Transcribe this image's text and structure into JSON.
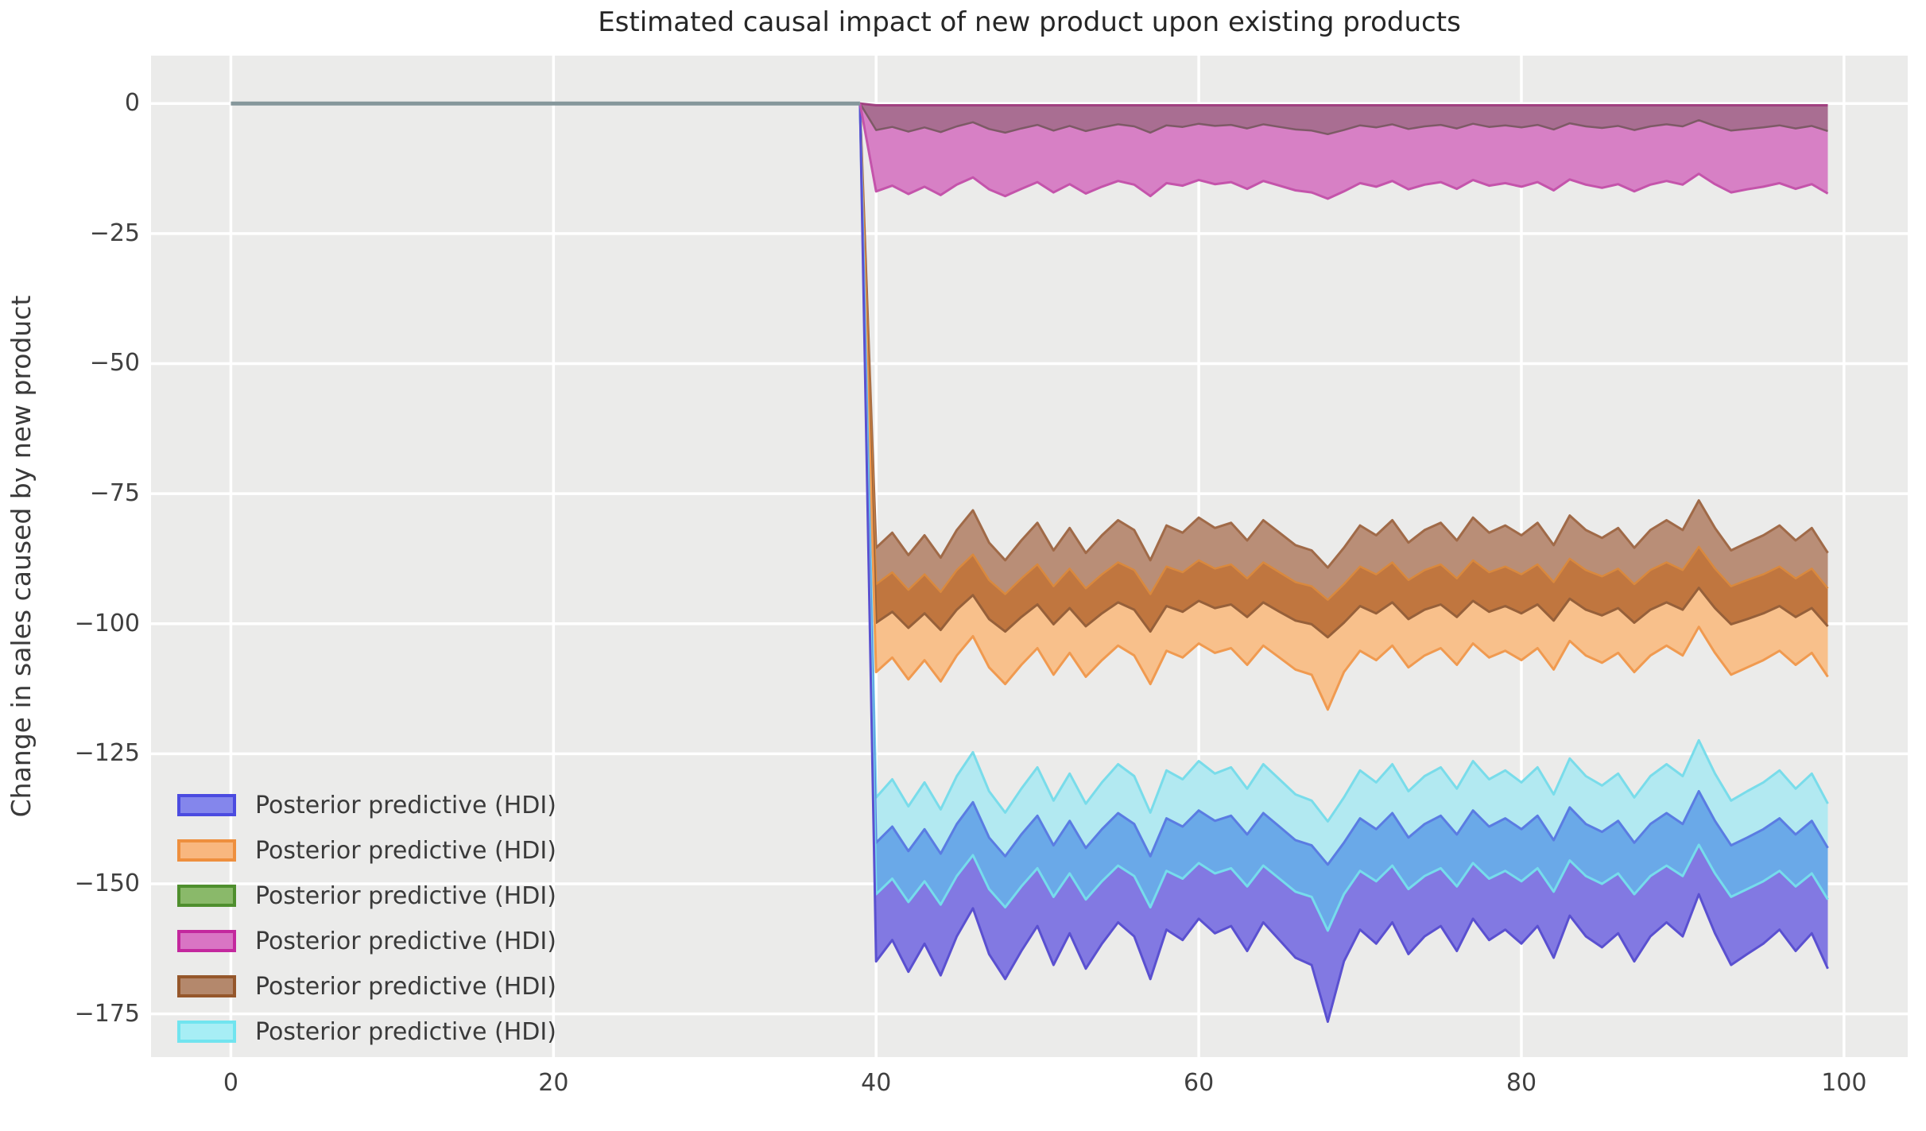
{
  "chart_data": {
    "type": "area",
    "title": "Estimated causal impact of new product upon existing products",
    "xlabel": "",
    "ylabel": "Change in sales caused by new product",
    "xlim": [
      -4.95,
      103.95
    ],
    "ylim": [
      -183.3,
      9.2
    ],
    "x_ticks": [
      0,
      20,
      40,
      60,
      80,
      100
    ],
    "y_ticks": [
      0,
      -25,
      -50,
      -75,
      -100,
      -125,
      -150,
      -175
    ],
    "grid": true,
    "grid_color": "#ffffff",
    "background": "#ebebea",
    "intervention_x": 40,
    "pre_period": {
      "x_start": 0,
      "value": 0,
      "color": "#85979b",
      "width": 5
    },
    "anchor": {
      "x": 39,
      "y": 0
    },
    "x_start": 40,
    "x_count": 60,
    "legend_title": "Posterior predictive (HDI)",
    "legend": [
      {
        "label": "Posterior predictive (HDI)",
        "face": "#8486ec",
        "edge": "#4b4be0"
      },
      {
        "label": "Posterior predictive (HDI)",
        "face": "#f8b77f",
        "edge": "#ee8f3e"
      },
      {
        "label": "Posterior predictive (HDI)",
        "face": "#8ab96a",
        "edge": "#4f8f2e"
      },
      {
        "label": "Posterior predictive (HDI)",
        "face": "#d975c4",
        "edge": "#c3289e"
      },
      {
        "label": "Posterior predictive (HDI)",
        "face": "#b4886c",
        "edge": "#95572b"
      },
      {
        "label": "Posterior predictive (HDI)",
        "face": "#a7eef5",
        "edge": "#71e4ef"
      }
    ],
    "bands": [
      {
        "name": "purple",
        "upper": "purple_upper",
        "lower": "purple_lower"
      },
      {
        "name": "orange",
        "upper": "orange_upper",
        "lower": "orange_lower"
      },
      {
        "name": "green",
        "upper": "green_upper",
        "lower": "green_lower"
      },
      {
        "name": "pink",
        "upper": "pink_upper",
        "lower": "pink_lower"
      },
      {
        "name": "brown",
        "upper": "brown_upper",
        "lower": "brown_lower"
      },
      {
        "name": "cyan",
        "upper": "cyan_upper",
        "lower": "cyan_lower"
      }
    ],
    "series": {
      "green_upper": -0.1,
      "pink_upper": -0.35,
      "green_lower": [
        -5.1,
        -4.5,
        -5.4,
        -4.6,
        -5.5,
        -4.4,
        -3.6,
        -4.9,
        -5.6,
        -4.8,
        -4.1,
        -5.2,
        -4.3,
        -5.3,
        -4.6,
        -4.0,
        -4.4,
        -5.6,
        -4.2,
        -4.5,
        -3.9,
        -4.3,
        -4.1,
        -4.8,
        -4.0,
        -4.5,
        -5.0,
        -5.2,
        -5.9,
        -5.1,
        -4.2,
        -4.6,
        -4.0,
        -4.9,
        -4.4,
        -4.1,
        -4.8,
        -3.9,
        -4.5,
        -4.2,
        -4.6,
        -4.1,
        -5.0,
        -3.8,
        -4.4,
        -4.7,
        -4.3,
        -5.1,
        -4.4,
        -4.0,
        -4.4,
        -3.2,
        -4.3,
        -5.2,
        -4.9,
        -4.6,
        -4.2,
        -4.8,
        -4.3,
        -5.3
      ],
      "pink_lower": [
        -16.9,
        -15.8,
        -17.4,
        -16.0,
        -17.6,
        -15.6,
        -14.2,
        -16.5,
        -17.8,
        -16.4,
        -15.1,
        -17.1,
        -15.5,
        -17.3,
        -16.0,
        -14.9,
        -15.6,
        -17.8,
        -15.3,
        -15.8,
        -14.7,
        -15.5,
        -15.1,
        -16.4,
        -14.9,
        -15.8,
        -16.7,
        -17.1,
        -18.3,
        -16.9,
        -15.3,
        -16.0,
        -14.9,
        -16.5,
        -15.6,
        -15.1,
        -16.4,
        -14.7,
        -15.8,
        -15.3,
        -16.0,
        -15.1,
        -16.7,
        -14.6,
        -15.6,
        -16.2,
        -15.5,
        -16.9,
        -15.6,
        -14.9,
        -15.6,
        -13.5,
        -15.5,
        -17.1,
        -16.5,
        -16.0,
        -15.3,
        -16.4,
        -15.5,
        -17.3
      ],
      "brown_upper": [
        -85.4,
        -82.5,
        -86.8,
        -83.0,
        -87.3,
        -82.0,
        -78.2,
        -84.4,
        -87.8,
        -84.0,
        -80.6,
        -85.9,
        -81.6,
        -86.4,
        -83.0,
        -80.1,
        -82.0,
        -87.8,
        -81.1,
        -82.5,
        -79.6,
        -81.6,
        -80.6,
        -84.0,
        -80.1,
        -82.5,
        -84.9,
        -85.9,
        -89.2,
        -85.4,
        -81.1,
        -83.0,
        -80.1,
        -84.4,
        -82.0,
        -80.6,
        -84.0,
        -79.6,
        -82.5,
        -81.1,
        -83.0,
        -80.6,
        -84.9,
        -79.2,
        -82.0,
        -83.5,
        -81.6,
        -85.4,
        -82.0,
        -80.1,
        -82.0,
        -76.3,
        -81.6,
        -85.9,
        -84.4,
        -83.0,
        -81.1,
        -84.0,
        -81.6,
        -86.4
      ],
      "orange_upper": [
        -92.4,
        -90.1,
        -93.5,
        -90.5,
        -93.9,
        -89.7,
        -86.7,
        -91.6,
        -94.3,
        -91.3,
        -88.6,
        -92.8,
        -89.4,
        -93.2,
        -90.5,
        -88.2,
        -89.7,
        -94.3,
        -89.0,
        -90.1,
        -87.8,
        -89.4,
        -88.6,
        -91.3,
        -88.2,
        -90.1,
        -92.0,
        -92.8,
        -95.4,
        -92.4,
        -89.0,
        -90.5,
        -88.2,
        -91.6,
        -89.7,
        -88.6,
        -91.3,
        -87.8,
        -90.1,
        -89.0,
        -90.5,
        -88.6,
        -92.0,
        -87.5,
        -89.7,
        -90.9,
        -89.4,
        -92.4,
        -89.7,
        -88.2,
        -89.7,
        -85.2,
        -89.4,
        -92.8,
        -91.6,
        -90.5,
        -89.0,
        -91.3,
        -89.4,
        -93.2
      ],
      "brown_lower": [
        -99.8,
        -97.7,
        -100.8,
        -98.0,
        -101.2,
        -97.3,
        -94.5,
        -99.1,
        -101.5,
        -98.7,
        -96.3,
        -100.1,
        -97.0,
        -100.5,
        -98.0,
        -95.9,
        -97.3,
        -101.5,
        -96.6,
        -97.7,
        -95.6,
        -97.0,
        -96.3,
        -98.7,
        -95.9,
        -97.7,
        -99.4,
        -100.1,
        -102.6,
        -99.8,
        -96.6,
        -98.0,
        -95.9,
        -99.1,
        -97.3,
        -96.3,
        -98.7,
        -95.6,
        -97.7,
        -96.6,
        -98.0,
        -96.3,
        -99.4,
        -95.2,
        -97.3,
        -98.4,
        -97.0,
        -99.8,
        -97.3,
        -95.9,
        -97.3,
        -93.1,
        -97.0,
        -100.1,
        -99.1,
        -98.0,
        -96.6,
        -98.7,
        -97.0,
        -100.5
      ],
      "orange_lower": [
        -109.3,
        -106.5,
        -110.7,
        -107.0,
        -111.1,
        -106.1,
        -102.4,
        -108.4,
        -111.6,
        -107.9,
        -104.7,
        -109.8,
        -105.6,
        -110.2,
        -107.0,
        -104.2,
        -106.1,
        -111.6,
        -105.2,
        -106.5,
        -103.8,
        -105.6,
        -104.7,
        -107.9,
        -104.2,
        -106.5,
        -108.8,
        -109.8,
        -116.5,
        -109.3,
        -105.2,
        -107.0,
        -104.2,
        -108.4,
        -106.1,
        -104.7,
        -107.9,
        -103.8,
        -106.5,
        -105.2,
        -107.0,
        -104.7,
        -108.8,
        -103.3,
        -106.1,
        -107.5,
        -105.6,
        -109.3,
        -106.1,
        -104.2,
        -106.1,
        -100.6,
        -105.6,
        -109.8,
        -108.4,
        -107.0,
        -105.2,
        -107.9,
        -105.6,
        -110.2
      ],
      "cyan_upper": [
        -133.4,
        -129.9,
        -135.1,
        -130.5,
        -135.7,
        -129.3,
        -124.7,
        -132.2,
        -136.3,
        -131.7,
        -127.6,
        -134.0,
        -128.8,
        -134.6,
        -130.5,
        -127.0,
        -129.3,
        -136.3,
        -128.2,
        -129.9,
        -126.4,
        -128.8,
        -127.6,
        -131.7,
        -127.0,
        -129.9,
        -132.8,
        -134.0,
        -138.0,
        -133.4,
        -128.2,
        -130.5,
        -127.0,
        -132.2,
        -129.3,
        -127.6,
        -131.7,
        -126.4,
        -129.9,
        -128.2,
        -130.5,
        -127.6,
        -132.8,
        -125.9,
        -129.3,
        -131.1,
        -128.8,
        -133.4,
        -129.3,
        -127.0,
        -129.3,
        -122.4,
        -128.8,
        -134.0,
        -132.2,
        -130.5,
        -128.2,
        -131.7,
        -128.8,
        -134.6
      ],
      "purple_upper": [
        -142.1,
        -139.0,
        -143.7,
        -139.5,
        -144.2,
        -138.5,
        -134.3,
        -141.1,
        -144.7,
        -140.5,
        -136.9,
        -142.6,
        -137.9,
        -143.1,
        -139.5,
        -136.4,
        -138.5,
        -144.7,
        -137.4,
        -139.0,
        -135.9,
        -137.9,
        -136.9,
        -140.5,
        -136.4,
        -139.0,
        -141.6,
        -142.6,
        -146.3,
        -142.1,
        -137.4,
        -139.5,
        -136.4,
        -141.1,
        -138.5,
        -136.9,
        -140.5,
        -135.9,
        -139.0,
        -137.4,
        -139.5,
        -136.9,
        -141.6,
        -135.3,
        -138.5,
        -140.0,
        -137.9,
        -142.1,
        -138.5,
        -136.4,
        -138.5,
        -132.2,
        -137.9,
        -142.6,
        -141.1,
        -139.5,
        -137.4,
        -140.5,
        -137.9,
        -143.1
      ],
      "cyan_lower": [
        -152.0,
        -149.0,
        -153.5,
        -149.5,
        -154.0,
        -148.5,
        -144.5,
        -151.0,
        -154.5,
        -150.5,
        -147.0,
        -152.5,
        -148.0,
        -153.0,
        -149.5,
        -146.5,
        -148.5,
        -154.5,
        -147.5,
        -149.0,
        -146.0,
        -148.0,
        -147.0,
        -150.5,
        -146.5,
        -149.0,
        -151.5,
        -152.5,
        -159.0,
        -152.0,
        -147.5,
        -149.5,
        -146.5,
        -151.0,
        -148.5,
        -147.0,
        -150.5,
        -146.0,
        -149.0,
        -147.5,
        -149.5,
        -147.0,
        -151.5,
        -145.5,
        -148.5,
        -150.0,
        -148.0,
        -152.0,
        -148.5,
        -146.5,
        -148.5,
        -142.5,
        -148.0,
        -152.5,
        -151.0,
        -149.5,
        -147.5,
        -150.5,
        -148.0,
        -153.0
      ],
      "purple_lower": [
        -164.9,
        -160.8,
        -166.9,
        -161.5,
        -167.6,
        -160.1,
        -154.7,
        -163.5,
        -168.3,
        -162.9,
        -158.1,
        -165.6,
        -159.5,
        -166.3,
        -161.5,
        -157.4,
        -160.1,
        -168.3,
        -158.8,
        -160.8,
        -156.7,
        -159.5,
        -158.1,
        -162.9,
        -157.4,
        -160.8,
        -164.2,
        -165.6,
        -176.5,
        -164.9,
        -158.8,
        -161.5,
        -157.4,
        -163.5,
        -160.1,
        -158.1,
        -162.9,
        -156.7,
        -160.8,
        -158.8,
        -161.5,
        -158.1,
        -164.2,
        -156.1,
        -160.1,
        -162.2,
        -159.5,
        -164.9,
        -160.1,
        -157.4,
        -160.1,
        -152.0,
        -159.5,
        -165.6,
        -163.5,
        -161.5,
        -158.8,
        -162.9,
        -159.5,
        -166.3
      ]
    },
    "regions": [
      {
        "name": "brown-only",
        "upper": "brown_upper",
        "lower": "orange_upper",
        "fill": "#b98e77"
      },
      {
        "name": "brown-orange-overlap",
        "upper": "orange_upper",
        "lower": "brown_lower",
        "fill": "#c0763f"
      },
      {
        "name": "orange-only",
        "upper": "brown_lower",
        "lower": "orange_lower",
        "fill": "#f8c08b"
      },
      {
        "name": "cyan-only",
        "upper": "cyan_upper",
        "lower": "purple_upper",
        "fill": "#b2e9f1"
      },
      {
        "name": "cyan-purple-overlap",
        "upper": "purple_upper",
        "lower": "cyan_lower",
        "fill": "#6aa9e8"
      },
      {
        "name": "purple-only",
        "upper": "cyan_lower",
        "lower": "purple_lower",
        "fill": "#8279e2"
      },
      {
        "name": "pink-green-overlap",
        "upper": "pink_upper",
        "lower": "green_lower",
        "fill": "#a96e92"
      },
      {
        "name": "pink-only",
        "upper": "green_lower",
        "lower": "pink_lower",
        "fill": "#d780c5"
      }
    ],
    "edges": [
      {
        "series": "brown_upper",
        "color": "#a06a48",
        "width": 3
      },
      {
        "series": "orange_upper",
        "color": "#d9893e",
        "width": 2.5
      },
      {
        "series": "brown_lower",
        "color": "#96603a",
        "width": 3
      },
      {
        "series": "orange_lower",
        "color": "#f09a50",
        "width": 3
      },
      {
        "series": "cyan_upper",
        "color": "#79dcea",
        "width": 3
      },
      {
        "series": "purple_upper",
        "color": "#5a7ce2",
        "width": 3
      },
      {
        "series": "cyan_lower",
        "color": "#76dcec",
        "width": 3
      },
      {
        "series": "purple_lower",
        "color": "#5a50d0",
        "width": 3
      },
      {
        "series": "pink_upper",
        "color": "#a04080",
        "width": 3
      },
      {
        "series": "green_lower",
        "color": "#7d5a66",
        "width": 2.5
      },
      {
        "series": "pink_lower",
        "color": "#c454ab",
        "width": 3
      }
    ]
  }
}
